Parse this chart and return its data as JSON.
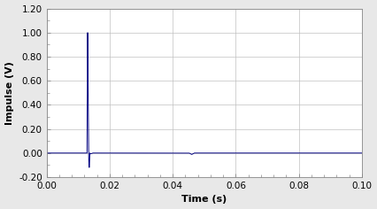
{
  "title": "",
  "xlabel": "Time (s)",
  "ylabel": "Impulse (V)",
  "xlim": [
    0.0,
    0.1
  ],
  "ylim": [
    -0.2,
    1.2
  ],
  "xticks": [
    0.0,
    0.02,
    0.04,
    0.06,
    0.08,
    0.1
  ],
  "yticks": [
    -0.2,
    0.0,
    0.2,
    0.4,
    0.6,
    0.8,
    1.0,
    1.2
  ],
  "line_color": "#000080",
  "spike_time": 0.013,
  "spike_peak": 1.0,
  "spike_trough": -0.12,
  "small_blip_time": 0.046,
  "small_blip_val": -0.012,
  "background_color": "#e8e8e8",
  "plot_bg_color": "#ffffff",
  "grid_color": "#c0c0c0",
  "figsize": [
    4.26,
    2.36
  ],
  "dpi": 100,
  "label_fontsize": 8,
  "tick_fontsize": 7.5
}
